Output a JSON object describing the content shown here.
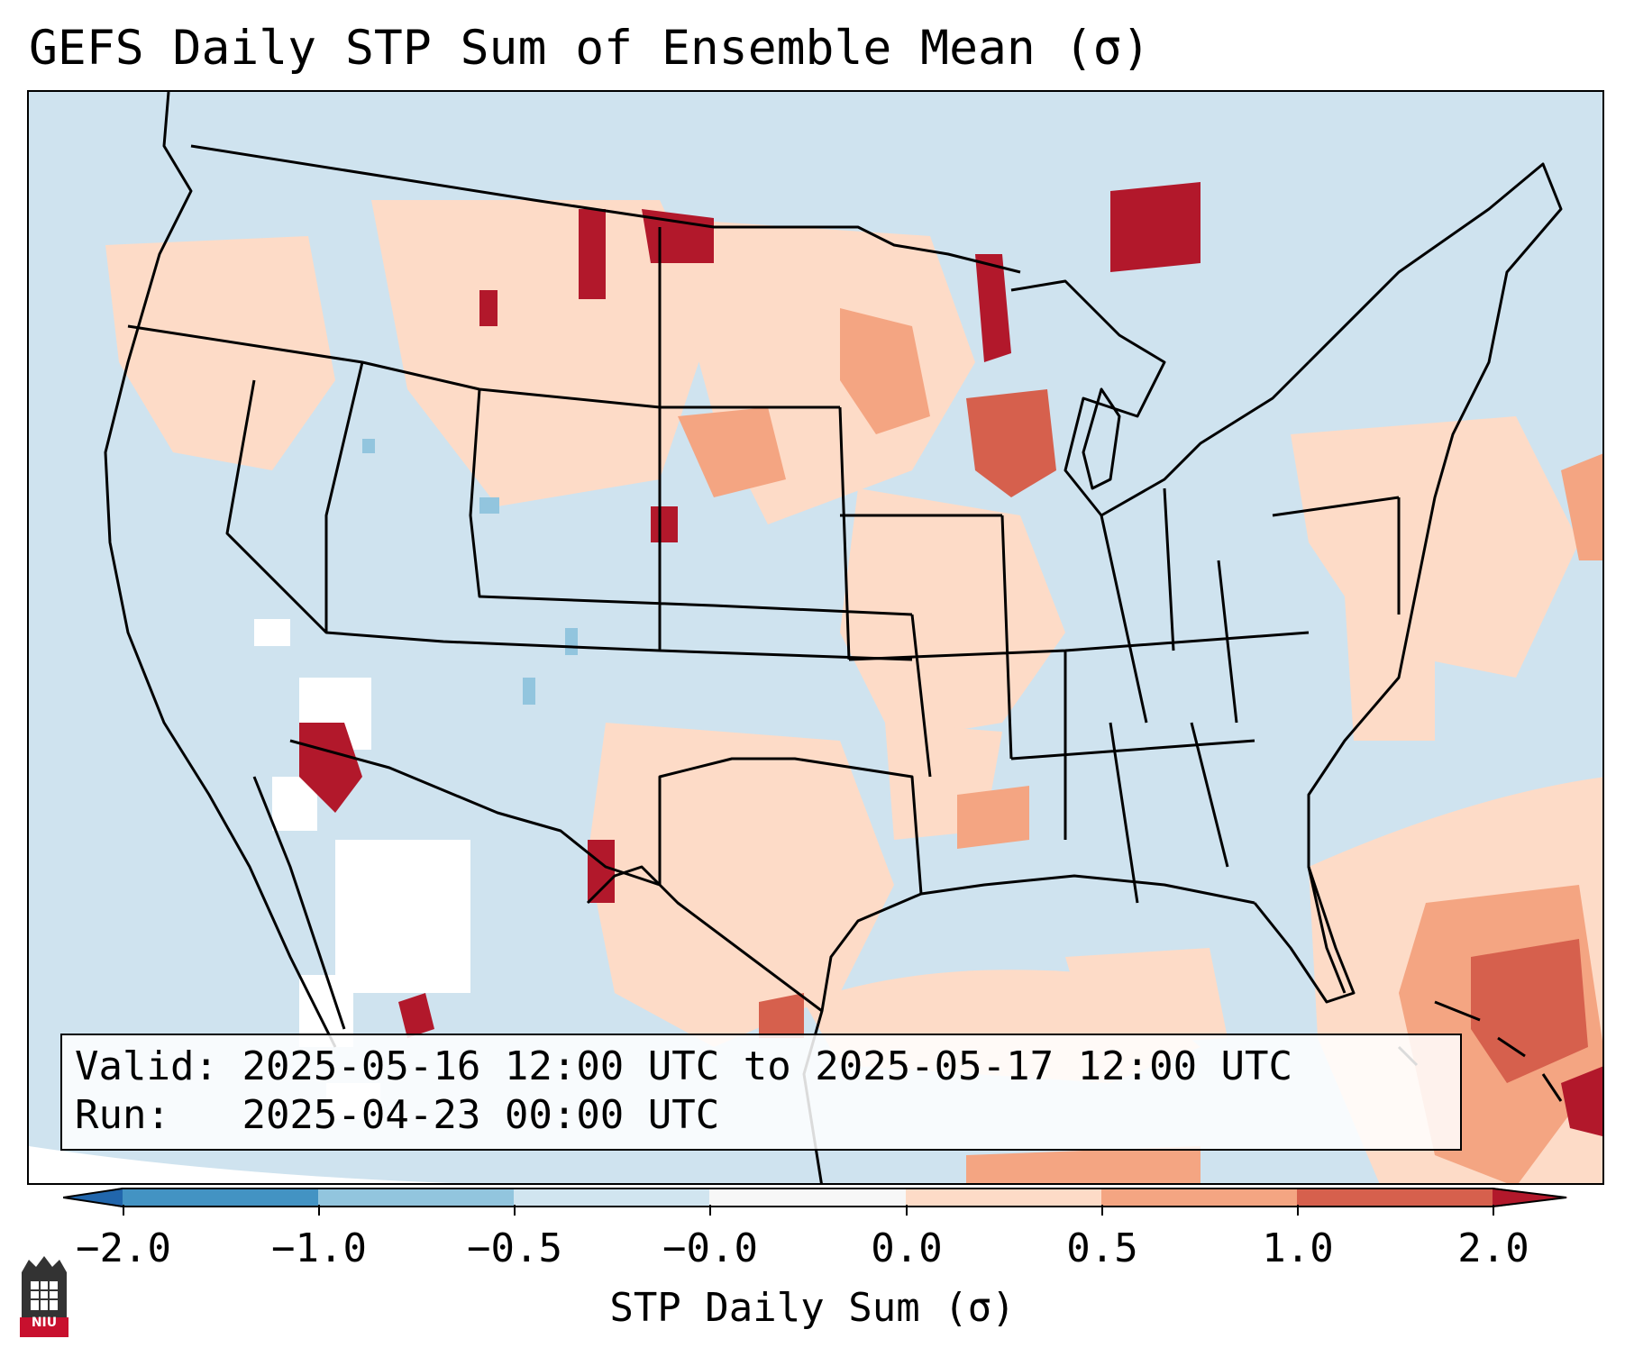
{
  "title": "GEFS Daily STP Sum of Ensemble Mean (σ)",
  "info": {
    "valid_label": "Valid:",
    "valid_value": "2025-05-16 12:00 UTC to 2025-05-17 12:00 UTC",
    "run_label": "Run:  ",
    "run_value": "2025-04-23 00:00 UTC"
  },
  "colorbar": {
    "label": "STP Daily Sum (σ)",
    "ticks": [
      "−2.0",
      "−1.0",
      "−0.5",
      "−0.0",
      "0.0",
      "0.5",
      "1.0",
      "2.0"
    ],
    "bins": [
      {
        "range": "< -2.0",
        "color": "#2166ac"
      },
      {
        "range": "-2.0 to -1.0",
        "color": "#4393c3"
      },
      {
        "range": "-1.0 to -0.5",
        "color": "#92c5de"
      },
      {
        "range": "-0.5 to 0.0",
        "color": "#d1e5f0"
      },
      {
        "range": "0.0",
        "color": "#f7f7f7"
      },
      {
        "range": "0.0 to 0.5",
        "color": "#fddbc7"
      },
      {
        "range": "0.5 to 1.0",
        "color": "#f4a582"
      },
      {
        "range": "1.0 to 2.0",
        "color": "#d6604d"
      },
      {
        "range": "> 2.0",
        "color": "#b2182b"
      }
    ],
    "extend": "both"
  },
  "logo": {
    "text": "NIU"
  },
  "map": {
    "projection": "Lambert Conformal (CONUS)",
    "background_color": "#d1e5f0",
    "anomaly_regions": [
      {
        "name": "Upper Midwest / Wisconsin-Michigan",
        "level": "1.0 to 2.0"
      },
      {
        "name": "Western Ontario",
        "level": "> 2.0"
      },
      {
        "name": "Northern Plains",
        "level": "0.5 to 1.0"
      },
      {
        "name": "Western Atlantic / Bahamas",
        "level": "1.0 to 2.0"
      },
      {
        "name": "Gulf of Mexico",
        "level": "0.0 to 0.5"
      },
      {
        "name": "Southwest Arizona / Northwest Mexico",
        "level": "> 2.0"
      },
      {
        "name": "Baja California / Sonora",
        "level": "0.0"
      }
    ]
  }
}
